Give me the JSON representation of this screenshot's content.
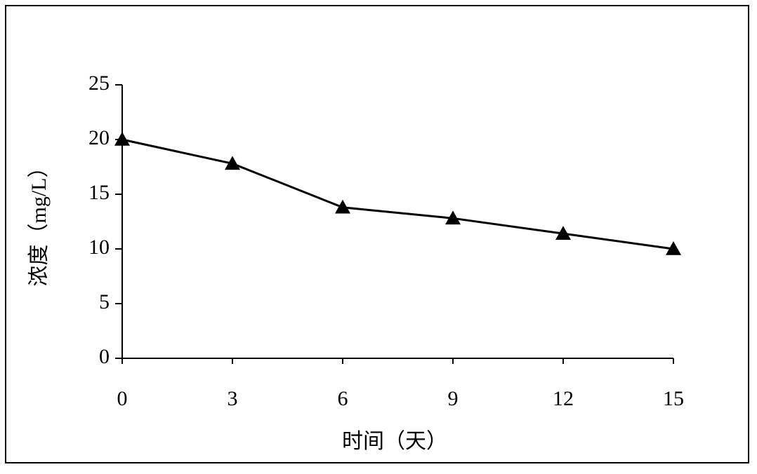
{
  "chart_data": {
    "type": "line",
    "x_label": "时间（天）",
    "y_label": "浓度（mg/L）",
    "x": [
      0,
      3,
      6,
      9,
      12,
      15
    ],
    "series": [
      {
        "color": "#000000",
        "marker": "triangle",
        "values": [
          20,
          17.8,
          13.8,
          12.8,
          11.4,
          10
        ]
      }
    ],
    "xlim": [
      0,
      15
    ],
    "xticks": [
      0,
      3,
      6,
      9,
      12,
      15
    ],
    "ylim": [
      0,
      25
    ],
    "yticks": [
      0,
      5,
      10,
      15,
      20,
      25
    ],
    "grid": false
  }
}
